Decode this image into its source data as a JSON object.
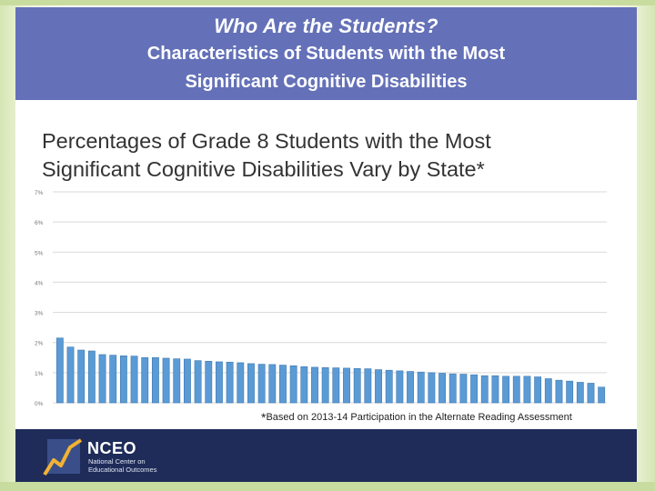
{
  "slide": {
    "title": "Who Are the Students?",
    "subtitle_line1": "Characteristics of Students with the Most",
    "subtitle_line2": "Significant Cognitive Disabilities"
  },
  "chart_data": {
    "type": "bar",
    "title_line1": "Percentages of Grade 8 Students with the Most",
    "title_line2": "Significant Cognitive Disabilities Vary by State*",
    "xlabel": "",
    "ylabel": "",
    "ylim": [
      0,
      7
    ],
    "yticks": [
      "0%",
      "1%",
      "2%",
      "3%",
      "4%",
      "5%",
      "6%",
      "7%"
    ],
    "grid": true,
    "bar_color": "#5b9bd5",
    "values": [
      2.15,
      1.85,
      1.75,
      1.72,
      1.6,
      1.58,
      1.56,
      1.55,
      1.5,
      1.5,
      1.48,
      1.46,
      1.45,
      1.4,
      1.38,
      1.36,
      1.35,
      1.33,
      1.3,
      1.28,
      1.27,
      1.25,
      1.23,
      1.2,
      1.18,
      1.17,
      1.16,
      1.15,
      1.14,
      1.13,
      1.1,
      1.08,
      1.06,
      1.04,
      1.02,
      1.0,
      0.98,
      0.96,
      0.95,
      0.93,
      0.9,
      0.9,
      0.88,
      0.88,
      0.88,
      0.86,
      0.8,
      0.75,
      0.72,
      0.68,
      0.65,
      0.52
    ],
    "footnote_star": "*",
    "footnote": "Based on 2013-14 Participation in the Alternate Reading Assessment"
  },
  "footer": {
    "logo_name": "NCEO",
    "logo_tagline": "National Center on Educational Outcomes"
  },
  "colors": {
    "header_bg": "#6471b8",
    "footer_bg": "#1f2c5a",
    "frame_green": "#c9dca0"
  }
}
